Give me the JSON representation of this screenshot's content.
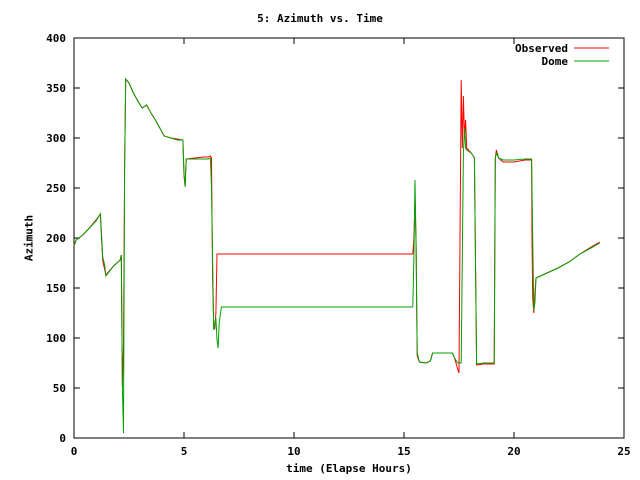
{
  "chart_data": {
    "type": "line",
    "title": "5: Azimuth vs. Time",
    "xlabel": "time (Elapse Hours)",
    "ylabel": "Azimuth",
    "xlim": [
      0,
      25
    ],
    "ylim": [
      0,
      400
    ],
    "xticks": [
      0,
      5,
      10,
      15,
      20,
      25
    ],
    "yticks": [
      0,
      50,
      100,
      150,
      200,
      250,
      300,
      350,
      400
    ],
    "grid": false,
    "legend_position": "top-right",
    "series": [
      {
        "name": "Observed",
        "color": "#ff0000",
        "points": [
          [
            0,
            192
          ],
          [
            0.1,
            198
          ],
          [
            0.4,
            203
          ],
          [
            0.7,
            210
          ],
          [
            1.0,
            218
          ],
          [
            1.2,
            224
          ],
          [
            1.25,
            200
          ],
          [
            1.3,
            180
          ],
          [
            1.32,
            176
          ],
          [
            1.45,
            163
          ],
          [
            1.8,
            172
          ],
          [
            2.1,
            178
          ],
          [
            2.15,
            183
          ],
          [
            2.2,
            52
          ],
          [
            2.25,
            90
          ],
          [
            2.3,
            270
          ],
          [
            2.35,
            359
          ],
          [
            2.5,
            355
          ],
          [
            2.7,
            345
          ],
          [
            2.9,
            337
          ],
          [
            3.1,
            330
          ],
          [
            3.3,
            333
          ],
          [
            3.5,
            325
          ],
          [
            3.7,
            318
          ],
          [
            3.9,
            310
          ],
          [
            4.1,
            302
          ],
          [
            4.4,
            300
          ],
          [
            4.7,
            299
          ],
          [
            4.95,
            298
          ],
          [
            5.0,
            262
          ],
          [
            5.05,
            252
          ],
          [
            5.1,
            279
          ],
          [
            5.5,
            280
          ],
          [
            5.9,
            281
          ],
          [
            6.1,
            281
          ],
          [
            6.2,
            282
          ],
          [
            6.25,
            280
          ],
          [
            6.3,
            160
          ],
          [
            6.35,
            112
          ],
          [
            6.4,
            110
          ],
          [
            6.45,
            125
          ],
          [
            6.5,
            184
          ],
          [
            15.4,
            184
          ],
          [
            15.45,
            200
          ],
          [
            15.5,
            240
          ],
          [
            15.55,
            195
          ],
          [
            15.6,
            82
          ],
          [
            15.7,
            76
          ],
          [
            16.0,
            75
          ],
          [
            16.2,
            77
          ],
          [
            16.3,
            85
          ],
          [
            17.2,
            85
          ],
          [
            17.3,
            80
          ],
          [
            17.45,
            68
          ],
          [
            17.5,
            65
          ],
          [
            17.6,
            358
          ],
          [
            17.65,
            290
          ],
          [
            17.7,
            342
          ],
          [
            17.75,
            300
          ],
          [
            17.8,
            318
          ],
          [
            17.85,
            290
          ],
          [
            18.05,
            285
          ],
          [
            18.15,
            282
          ],
          [
            18.2,
            280
          ],
          [
            18.3,
            73
          ],
          [
            18.6,
            74
          ],
          [
            19.0,
            74
          ],
          [
            19.1,
            74
          ],
          [
            19.15,
            280
          ],
          [
            19.2,
            288
          ],
          [
            19.3,
            280
          ],
          [
            19.5,
            276
          ],
          [
            20.0,
            276
          ],
          [
            20.5,
            278
          ],
          [
            20.8,
            278
          ],
          [
            20.82,
            200
          ],
          [
            20.85,
            140
          ],
          [
            20.9,
            125
          ],
          [
            20.95,
            145
          ],
          [
            21.0,
            160
          ],
          [
            21.3,
            163
          ],
          [
            21.6,
            166
          ],
          [
            22.0,
            170
          ],
          [
            22.5,
            176
          ],
          [
            23.0,
            184
          ],
          [
            23.5,
            191
          ],
          [
            23.9,
            196
          ]
        ]
      },
      {
        "name": "Dome",
        "color": "#00a000",
        "points": [
          [
            0,
            193
          ],
          [
            0.1,
            198
          ],
          [
            0.4,
            203
          ],
          [
            0.7,
            210
          ],
          [
            1.0,
            217
          ],
          [
            1.2,
            224
          ],
          [
            1.25,
            205
          ],
          [
            1.3,
            182
          ],
          [
            1.4,
            172
          ],
          [
            1.45,
            162
          ],
          [
            1.8,
            172
          ],
          [
            2.1,
            178
          ],
          [
            2.15,
            183
          ],
          [
            2.2,
            50
          ],
          [
            2.25,
            5
          ],
          [
            2.3,
            270
          ],
          [
            2.35,
            359
          ],
          [
            2.5,
            355
          ],
          [
            2.7,
            345
          ],
          [
            2.9,
            337
          ],
          [
            3.1,
            330
          ],
          [
            3.3,
            333
          ],
          [
            3.5,
            325
          ],
          [
            3.7,
            318
          ],
          [
            3.9,
            310
          ],
          [
            4.1,
            302
          ],
          [
            4.4,
            300
          ],
          [
            4.7,
            298
          ],
          [
            4.95,
            298
          ],
          [
            5.0,
            265
          ],
          [
            5.05,
            251
          ],
          [
            5.1,
            279
          ],
          [
            5.5,
            279
          ],
          [
            5.9,
            279
          ],
          [
            6.1,
            279
          ],
          [
            6.2,
            280
          ],
          [
            6.25,
            250
          ],
          [
            6.35,
            108
          ],
          [
            6.45,
            120
          ],
          [
            6.5,
            98
          ],
          [
            6.55,
            90
          ],
          [
            6.6,
            115
          ],
          [
            6.7,
            131
          ],
          [
            15.4,
            131
          ],
          [
            15.45,
            180
          ],
          [
            15.5,
            258
          ],
          [
            15.55,
            190
          ],
          [
            15.6,
            85
          ],
          [
            15.7,
            76
          ],
          [
            16.0,
            75
          ],
          [
            16.2,
            77
          ],
          [
            16.3,
            85
          ],
          [
            17.2,
            85
          ],
          [
            17.3,
            80
          ],
          [
            17.45,
            75
          ],
          [
            17.6,
            75
          ],
          [
            17.7,
            285
          ],
          [
            17.75,
            310
          ],
          [
            17.8,
            290
          ],
          [
            17.85,
            288
          ],
          [
            18.05,
            285
          ],
          [
            18.15,
            282
          ],
          [
            18.2,
            280
          ],
          [
            18.3,
            74
          ],
          [
            18.6,
            75
          ],
          [
            19.0,
            75
          ],
          [
            19.1,
            75
          ],
          [
            19.15,
            280
          ],
          [
            19.2,
            285
          ],
          [
            19.3,
            280
          ],
          [
            19.5,
            278
          ],
          [
            20.0,
            278
          ],
          [
            20.5,
            279
          ],
          [
            20.8,
            279
          ],
          [
            20.85,
            200
          ],
          [
            20.9,
            128
          ],
          [
            20.95,
            135
          ],
          [
            21.0,
            160
          ],
          [
            21.3,
            163
          ],
          [
            21.6,
            166
          ],
          [
            22.0,
            170
          ],
          [
            22.5,
            176
          ],
          [
            23.0,
            184
          ],
          [
            23.5,
            190
          ],
          [
            23.9,
            195
          ]
        ]
      }
    ]
  }
}
